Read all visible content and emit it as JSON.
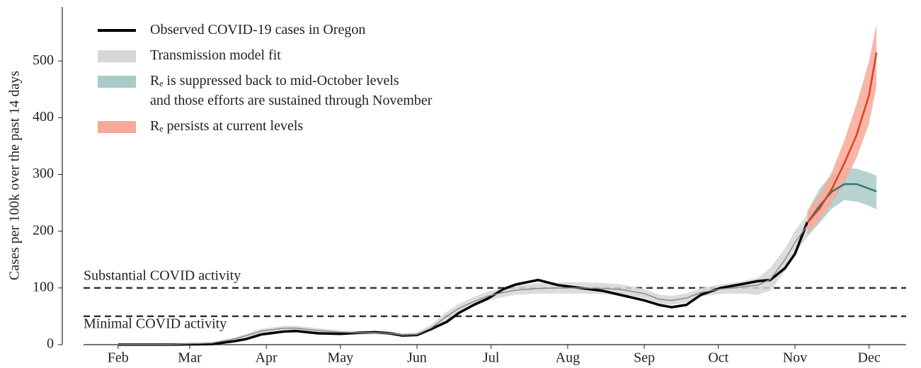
{
  "chart_data": {
    "type": "line",
    "y_label": "Cases per 100k over the past 14 days",
    "xlim": [
      10,
      351
    ],
    "xticks": [
      {
        "value": 32,
        "label": "Feb"
      },
      {
        "value": 61,
        "label": "Mar"
      },
      {
        "value": 92,
        "label": "Apr"
      },
      {
        "value": 122,
        "label": "May"
      },
      {
        "value": 153,
        "label": "Jun"
      },
      {
        "value": 183,
        "label": "Jul"
      },
      {
        "value": 214,
        "label": "Aug"
      },
      {
        "value": 245,
        "label": "Sep"
      },
      {
        "value": 275,
        "label": "Oct"
      },
      {
        "value": 306,
        "label": "Nov"
      },
      {
        "value": 336,
        "label": "Dec"
      }
    ],
    "ylim": [
      0,
      595
    ],
    "yticks": [
      0,
      100,
      200,
      300,
      400,
      500
    ],
    "reference_lines": [
      {
        "value": 100,
        "label": "Substantial COVID activity"
      },
      {
        "value": 50,
        "label": "Minimal COVID activity"
      }
    ],
    "reference_color": "#333333",
    "series": [
      {
        "name": "Observed COVID-19 cases in Oregon",
        "color": "#000000",
        "legend": "line",
        "x": [
          32,
          50,
          70,
          79,
          84,
          90,
          99,
          104,
          113,
          122,
          130,
          136,
          142,
          147,
          153,
          159,
          165,
          170,
          176,
          182,
          188,
          193,
          202,
          210,
          219,
          228,
          236,
          245,
          251,
          256,
          262,
          268,
          276,
          285,
          291,
          296,
          302,
          306,
          311
        ],
        "values": [
          0,
          0,
          1,
          6,
          10,
          18,
          23,
          24,
          20,
          19,
          21,
          22,
          20,
          16,
          17,
          28,
          40,
          56,
          70,
          82,
          98,
          106,
          114,
          105,
          100,
          95,
          87,
          78,
          70,
          66,
          70,
          88,
          100,
          107,
          112,
          114,
          135,
          160,
          216
        ]
      },
      {
        "name": "Transmission model fit",
        "color": "#8a8a8a",
        "band_color": "#d6d6d6",
        "legend": "band",
        "x": [
          32,
          50,
          70,
          79,
          84,
          90,
          99,
          104,
          113,
          122,
          130,
          136,
          142,
          147,
          153,
          159,
          165,
          170,
          176,
          182,
          188,
          193,
          202,
          210,
          219,
          228,
          236,
          245,
          251,
          256,
          262,
          268,
          276,
          285,
          291,
          296,
          302,
          306,
          311
        ],
        "values": [
          0,
          0,
          3,
          10,
          16,
          24,
          29,
          29,
          25,
          22,
          21,
          21,
          20,
          17,
          18,
          30,
          50,
          64,
          76,
          86,
          92,
          96,
          99,
          100,
          100,
          99,
          97,
          90,
          80,
          78,
          82,
          92,
          98,
          102,
          105,
          115,
          150,
          180,
          210
        ],
        "band_lower": [
          0,
          0,
          2,
          8,
          13,
          20,
          25,
          25,
          21,
          19,
          18,
          18,
          17,
          14,
          15,
          24,
          42,
          56,
          68,
          78,
          84,
          88,
          90,
          90,
          90,
          89,
          88,
          82,
          72,
          70,
          74,
          84,
          90,
          90,
          88,
          95,
          130,
          160,
          190
        ],
        "band_upper": [
          0,
          1,
          4,
          12,
          19,
          28,
          33,
          33,
          29,
          25,
          24,
          24,
          23,
          20,
          21,
          36,
          58,
          72,
          84,
          94,
          100,
          104,
          108,
          110,
          110,
          109,
          106,
          98,
          88,
          86,
          90,
          100,
          106,
          112,
          118,
          135,
          170,
          200,
          230
        ]
      },
      {
        "name": "Rₑ is suppressed back to mid-October levels\nand those efforts are sustained through November",
        "color": "#2f7a78",
        "band_color": "#a9cbc7",
        "legend": "band",
        "x": [
          311,
          316,
          321,
          326,
          331,
          336,
          339
        ],
        "values": [
          215,
          245,
          270,
          283,
          283,
          275,
          270
        ],
        "band_lower": [
          190,
          215,
          240,
          255,
          252,
          245,
          238
        ],
        "band_upper": [
          235,
          275,
          300,
          312,
          310,
          303,
          298
        ]
      },
      {
        "name": "Rₑ persists at current levels",
        "color": "#e0401c",
        "band_color": "#f7a99a",
        "legend": "band",
        "x": [
          311,
          316,
          321,
          326,
          331,
          336,
          339
        ],
        "values": [
          215,
          240,
          275,
          320,
          370,
          440,
          515
        ],
        "band_lower": [
          195,
          220,
          250,
          285,
          330,
          390,
          455
        ],
        "band_upper": [
          235,
          265,
          305,
          360,
          425,
          500,
          565
        ]
      }
    ]
  }
}
